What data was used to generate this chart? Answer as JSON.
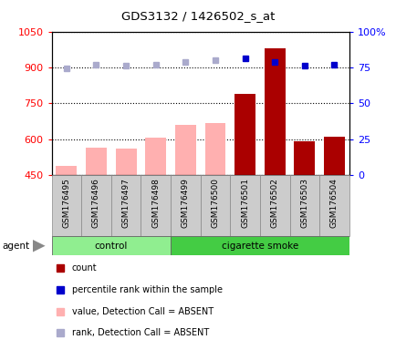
{
  "title": "GDS3132 / 1426502_s_at",
  "samples": [
    "GSM176495",
    "GSM176496",
    "GSM176497",
    "GSM176498",
    "GSM176499",
    "GSM176500",
    "GSM176501",
    "GSM176502",
    "GSM176503",
    "GSM176504"
  ],
  "bar_heights": [
    490,
    565,
    562,
    608,
    660,
    668,
    790,
    980,
    590,
    610
  ],
  "bar_is_absent": [
    true,
    true,
    true,
    true,
    true,
    true,
    false,
    false,
    false,
    false
  ],
  "rank_values_pct": [
    74,
    77,
    76.5,
    77,
    79,
    80,
    81,
    79,
    76,
    77
  ],
  "rank_is_absent": [
    true,
    true,
    true,
    true,
    true,
    true,
    false,
    false,
    false,
    false
  ],
  "ylim_left": [
    450,
    1050
  ],
  "ylim_right": [
    0,
    100
  ],
  "yticks_left": [
    450,
    600,
    750,
    900,
    1050
  ],
  "yticks_right": [
    0,
    25,
    50,
    75,
    100
  ],
  "ytick_labels_right": [
    "0",
    "25",
    "50",
    "75",
    "100%"
  ],
  "bar_color_absent": "#FFB0B0",
  "bar_color_present": "#AA0000",
  "rank_color_absent": "#AAAACC",
  "rank_color_present": "#0000CC",
  "control_color": "#90EE90",
  "smoke_color": "#44CC44",
  "base": 450,
  "n_control": 4,
  "n_smoke": 6
}
